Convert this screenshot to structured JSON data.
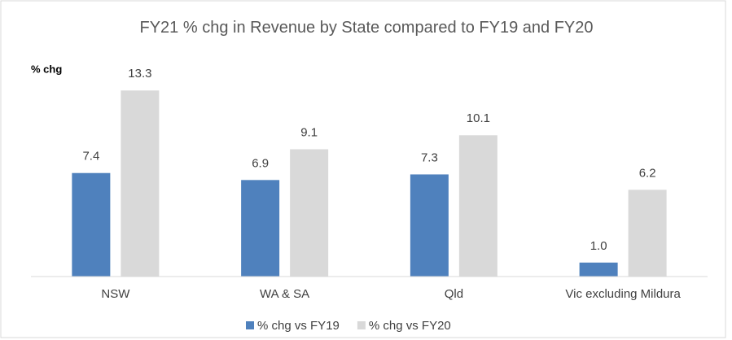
{
  "chart_data": {
    "type": "bar",
    "title": "FY21 % chg in Revenue by State compared to FY19 and FY20",
    "y_label": "% chg",
    "categories": [
      "NSW",
      "WA & SA",
      "Qld",
      "Vic excluding Mildura"
    ],
    "series": [
      {
        "name": "% chg vs FY19",
        "color": "#4f81bd",
        "values": [
          7.4,
          6.9,
          7.3,
          1.0
        ],
        "value_labels": [
          "7.4",
          "6.9",
          "7.3",
          "1.0"
        ]
      },
      {
        "name": "% chg vs FY20",
        "color": "#d9d9d9",
        "values": [
          13.3,
          9.1,
          10.1,
          6.2
        ],
        "value_labels": [
          "13.3",
          "9.1",
          "10.1",
          "6.2"
        ]
      }
    ],
    "ylim": [
      0,
      15
    ],
    "legend": "bottom"
  }
}
